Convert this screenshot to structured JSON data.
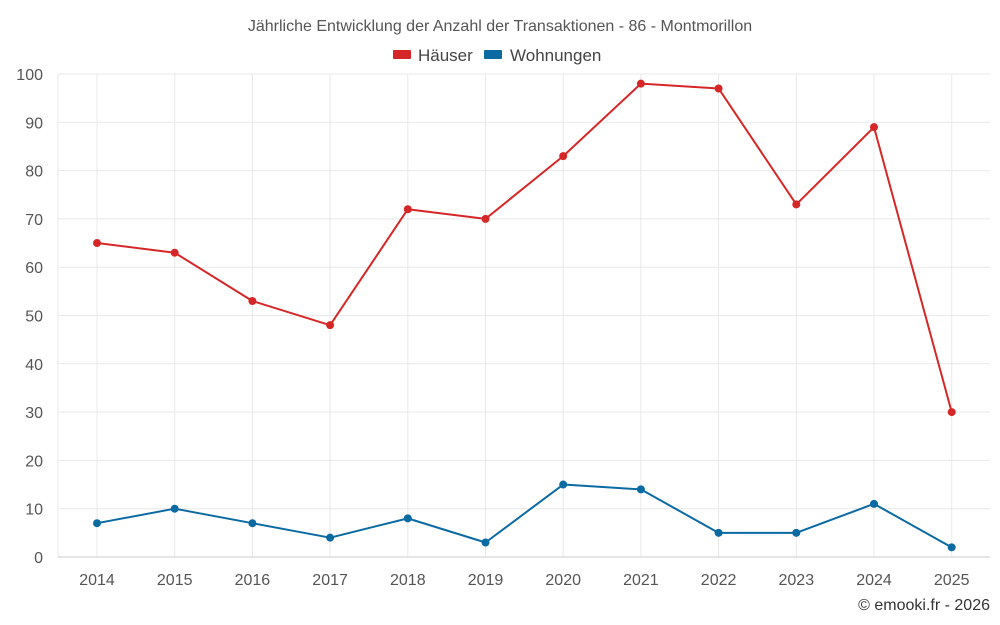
{
  "chart_data": {
    "type": "line",
    "title": "Jährliche Entwicklung der Anzahl der Transaktionen - 86 - Montmorillon",
    "categories": [
      "2014",
      "2015",
      "2016",
      "2017",
      "2018",
      "2019",
      "2020",
      "2021",
      "2022",
      "2023",
      "2024",
      "2025"
    ],
    "series": [
      {
        "name": "Häuser",
        "color": "#d62728",
        "values": [
          65,
          63,
          53,
          48,
          72,
          70,
          83,
          98,
          97,
          73,
          89,
          30
        ]
      },
      {
        "name": "Wohnungen",
        "color": "#0b6aa2",
        "values": [
          7,
          10,
          7,
          4,
          8,
          3,
          15,
          14,
          5,
          5,
          11,
          2
        ]
      }
    ],
    "xlabel": "",
    "ylabel": "",
    "ylim": [
      0,
      100
    ],
    "yticks": [
      0,
      10,
      20,
      30,
      40,
      50,
      60,
      70,
      80,
      90,
      100
    ],
    "grid": true,
    "legend_position": "top-center"
  },
  "credit": "© emooki.fr - 2026"
}
